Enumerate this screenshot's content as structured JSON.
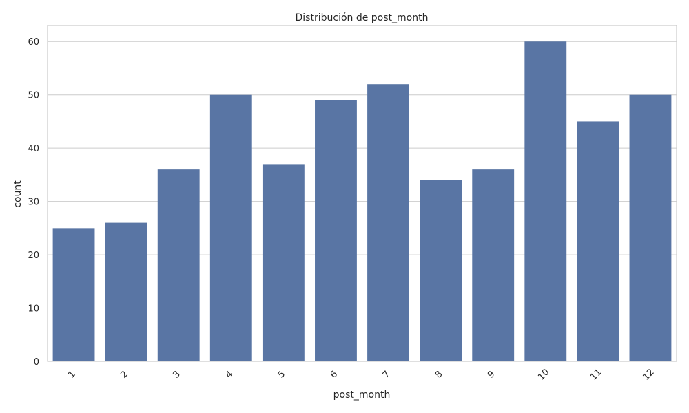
{
  "chart_data": {
    "type": "bar",
    "title": "Distribución de post_month",
    "xlabel": "post_month",
    "ylabel": "count",
    "categories": [
      "1",
      "2",
      "3",
      "4",
      "5",
      "6",
      "7",
      "8",
      "9",
      "10",
      "11",
      "12"
    ],
    "values": [
      25,
      26,
      36,
      50,
      37,
      49,
      52,
      34,
      36,
      60,
      45,
      50
    ],
    "ylim": [
      0,
      63
    ],
    "yticks": [
      "0",
      "10",
      "20",
      "30",
      "40",
      "50",
      "60"
    ],
    "grid": "horizontal",
    "xtick_rotation": 45,
    "colors": {
      "bar": "#5975a4",
      "grid": "#cccccc",
      "frame": "#cccccc",
      "text": "#262626"
    }
  }
}
